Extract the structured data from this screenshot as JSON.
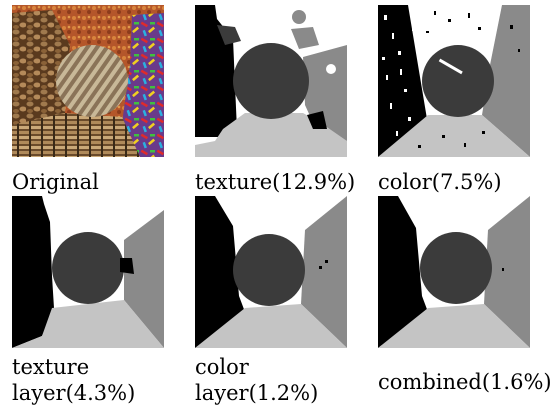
{
  "figure": {
    "captions": {
      "original": "Original",
      "texture": "texture(12.9%)",
      "color": "color(7.5%)",
      "texture_layer_line1": "texture",
      "texture_layer_line2": "layer(4.3%)",
      "color_layer_line1": "color",
      "color_layer_line2": "layer(1.2%)",
      "combined": "combined(1.6%)"
    },
    "region_colors": {
      "black": "#000000",
      "dark": "#3b3b3b",
      "mid": "#8a8a8a",
      "light": "#c4c4c4",
      "white": "#ffffff"
    }
  }
}
